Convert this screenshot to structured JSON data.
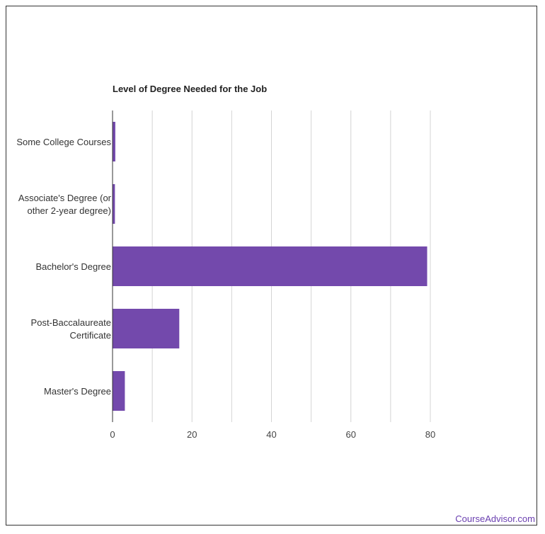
{
  "chart_data": {
    "type": "bar",
    "orientation": "horizontal",
    "title": "Level of Degree Needed for the Job",
    "categories": [
      [
        "Some College Courses"
      ],
      [
        "Associate's Degree (or",
        "other 2-year degree)"
      ],
      [
        "Bachelor's Degree"
      ],
      [
        "Post-Baccalaureate",
        "Certificate"
      ],
      [
        "Master's Degree"
      ]
    ],
    "values": [
      0.7,
      0.6,
      79.2,
      16.8,
      3.1
    ],
    "xlim": [
      0,
      80
    ],
    "xticks": [
      0,
      20,
      40,
      60,
      80
    ],
    "grid": true,
    "bar_color": "#7349ac"
  },
  "brand": "CourseAdvisor.com"
}
